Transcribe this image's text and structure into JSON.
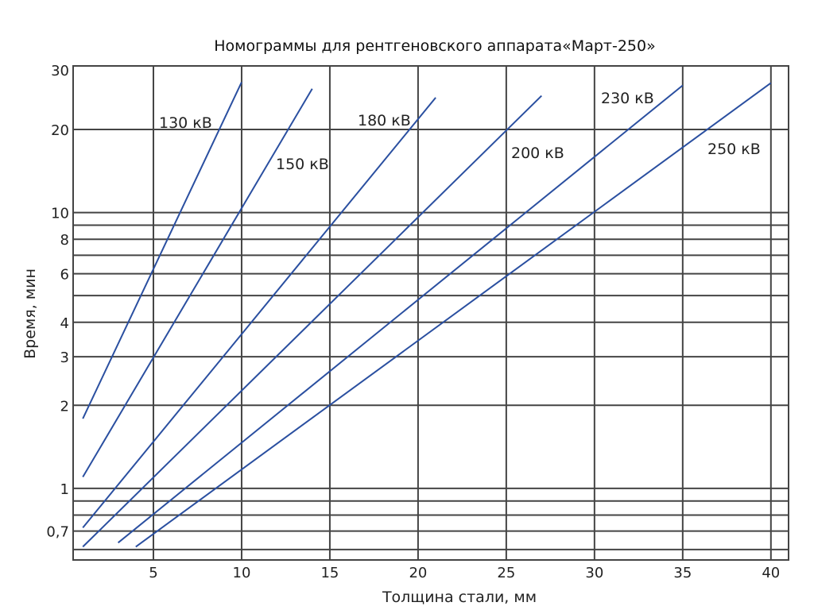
{
  "chart_data": {
    "type": "line",
    "title": "Номограммы для рентгеновского аппарата«Март-250»",
    "xlabel": "Толщина стали, мм",
    "ylabel": "Время, мин",
    "xlim": [
      0.45,
      41
    ],
    "ylim": [
      0.55,
      34
    ],
    "yscale": "log",
    "grid": true,
    "line_color": "#2a4fa0",
    "grid_color": "#444444",
    "x_ticks": [
      5,
      10,
      15,
      20,
      25,
      30,
      35,
      40
    ],
    "x_tick_labels": [
      "5",
      "10",
      "15",
      "20",
      "25",
      "30",
      "35",
      "40"
    ],
    "y_gridlines": [
      0.6,
      0.7,
      0.8,
      0.9,
      1,
      2,
      3,
      4,
      5,
      6,
      7,
      8,
      9,
      10,
      20
    ],
    "y_ticks": [
      30,
      20,
      10,
      8,
      6,
      4,
      3,
      2,
      1,
      0.7
    ],
    "y_tick_labels": [
      "30",
      "20",
      "10",
      "8",
      "6",
      "4",
      "3",
      "2",
      "1",
      "0,7"
    ],
    "series": [
      {
        "name": "130 кВ",
        "x": [
          1,
          10
        ],
        "y": [
          1.79,
          29.7
        ]
      },
      {
        "name": "150 кВ",
        "x": [
          1,
          14
        ],
        "y": [
          1.1,
          28.1
        ]
      },
      {
        "name": "180 кВ",
        "x": [
          1,
          21
        ],
        "y": [
          0.72,
          26.1
        ]
      },
      {
        "name": "200 кВ",
        "x": [
          1,
          27
        ],
        "y": [
          0.614,
          26.5
        ]
      },
      {
        "name": "230 кВ",
        "x": [
          3,
          35
        ],
        "y": [
          0.635,
          28.9
        ]
      },
      {
        "name": "250 кВ",
        "x": [
          4,
          40
        ],
        "y": [
          0.614,
          29.5
        ]
      }
    ]
  }
}
